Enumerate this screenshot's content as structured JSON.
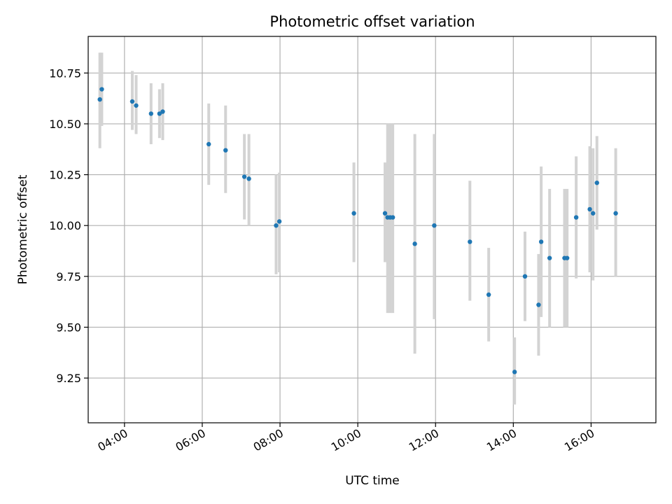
{
  "chart_data": {
    "type": "scatter",
    "title": "Photometric offset variation",
    "xlabel": "UTC time",
    "ylabel": "Photometric offset",
    "xlim": [
      "03:04",
      "17:40"
    ],
    "ylim": [
      9.03,
      10.93
    ],
    "x_ticks": [
      "04:00",
      "06:00",
      "08:00",
      "10:00",
      "12:00",
      "14:00",
      "16:00"
    ],
    "y_ticks": [
      9.25,
      9.5,
      9.75,
      10.0,
      10.25,
      10.5,
      10.75
    ],
    "y_tick_labels": [
      "9.25",
      "9.50",
      "9.75",
      "10.00",
      "10.25",
      "10.50",
      "10.75"
    ],
    "grid": true,
    "point_color": "#1f77b4",
    "errorbar_color": "#d3d3d3",
    "points": [
      {
        "x": "03:22",
        "y": 10.62,
        "ylo": 10.38,
        "yhi": 10.85
      },
      {
        "x": "03:25",
        "y": 10.67,
        "ylo": 10.49,
        "yhi": 10.85
      },
      {
        "x": "04:12",
        "y": 10.61,
        "ylo": 10.47,
        "yhi": 10.76
      },
      {
        "x": "04:18",
        "y": 10.59,
        "ylo": 10.45,
        "yhi": 10.74
      },
      {
        "x": "04:41",
        "y": 10.55,
        "ylo": 10.4,
        "yhi": 10.7
      },
      {
        "x": "04:54",
        "y": 10.55,
        "ylo": 10.43,
        "yhi": 10.67
      },
      {
        "x": "04:59",
        "y": 10.56,
        "ylo": 10.42,
        "yhi": 10.7
      },
      {
        "x": "06:10",
        "y": 10.4,
        "ylo": 10.2,
        "yhi": 10.6
      },
      {
        "x": "06:36",
        "y": 10.37,
        "ylo": 10.16,
        "yhi": 10.59
      },
      {
        "x": "07:05",
        "y": 10.24,
        "ylo": 10.03,
        "yhi": 10.45
      },
      {
        "x": "07:12",
        "y": 10.23,
        "ylo": 10.0,
        "yhi": 10.45
      },
      {
        "x": "07:54",
        "y": 10.0,
        "ylo": 9.76,
        "yhi": 10.25
      },
      {
        "x": "07:59",
        "y": 10.02,
        "ylo": 9.77,
        "yhi": 10.26
      },
      {
        "x": "09:54",
        "y": 10.06,
        "ylo": 9.82,
        "yhi": 10.31
      },
      {
        "x": "10:42",
        "y": 10.06,
        "ylo": 9.82,
        "yhi": 10.31
      },
      {
        "x": "10:46",
        "y": 10.04,
        "ylo": 9.57,
        "yhi": 10.5
      },
      {
        "x": "10:50",
        "y": 10.04,
        "ylo": 9.57,
        "yhi": 10.5
      },
      {
        "x": "10:54",
        "y": 10.04,
        "ylo": 9.57,
        "yhi": 10.5
      },
      {
        "x": "11:28",
        "y": 9.91,
        "ylo": 9.37,
        "yhi": 10.45
      },
      {
        "x": "11:58",
        "y": 10.0,
        "ylo": 9.54,
        "yhi": 10.45
      },
      {
        "x": "12:53",
        "y": 9.92,
        "ylo": 9.63,
        "yhi": 10.22
      },
      {
        "x": "13:22",
        "y": 9.66,
        "ylo": 9.43,
        "yhi": 9.89
      },
      {
        "x": "14:02",
        "y": 9.28,
        "ylo": 9.12,
        "yhi": 9.45
      },
      {
        "x": "14:18",
        "y": 9.75,
        "ylo": 9.53,
        "yhi": 9.97
      },
      {
        "x": "14:39",
        "y": 9.61,
        "ylo": 9.36,
        "yhi": 9.86
      },
      {
        "x": "14:43",
        "y": 9.92,
        "ylo": 9.55,
        "yhi": 10.29
      },
      {
        "x": "14:56",
        "y": 9.84,
        "ylo": 9.5,
        "yhi": 10.18
      },
      {
        "x": "15:19",
        "y": 9.84,
        "ylo": 9.5,
        "yhi": 10.18
      },
      {
        "x": "15:23",
        "y": 9.84,
        "ylo": 9.5,
        "yhi": 10.18
      },
      {
        "x": "15:37",
        "y": 10.04,
        "ylo": 9.74,
        "yhi": 10.34
      },
      {
        "x": "15:58",
        "y": 10.08,
        "ylo": 9.77,
        "yhi": 10.39
      },
      {
        "x": "16:03",
        "y": 10.06,
        "ylo": 9.73,
        "yhi": 10.38
      },
      {
        "x": "16:09",
        "y": 10.21,
        "ylo": 9.98,
        "yhi": 10.44
      },
      {
        "x": "16:38",
        "y": 10.06,
        "ylo": 9.75,
        "yhi": 10.38
      }
    ]
  }
}
